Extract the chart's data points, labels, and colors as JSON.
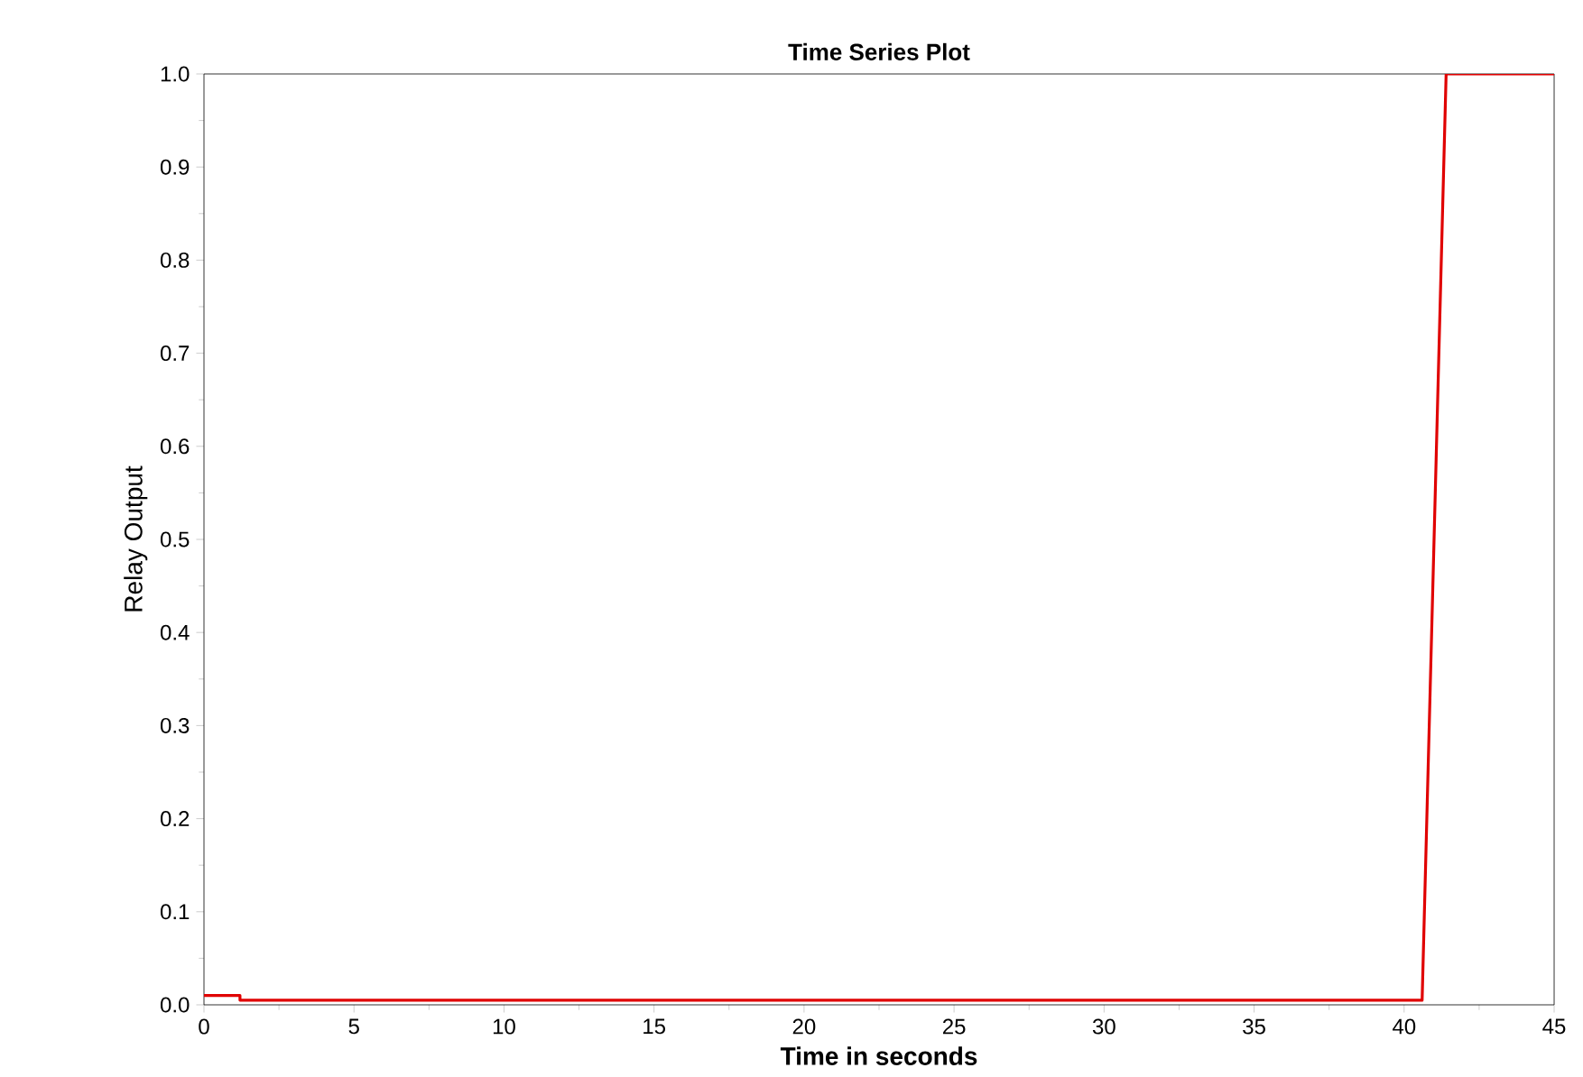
{
  "chart_data": {
    "type": "line",
    "title": "Time Series Plot",
    "xlabel": "Time in seconds",
    "ylabel": "Relay Output",
    "xlim": [
      0,
      45
    ],
    "ylim": [
      0,
      1
    ],
    "xticks": [
      0,
      5,
      10,
      15,
      20,
      25,
      30,
      35,
      40,
      45
    ],
    "yticks": [
      {
        "value": 0,
        "label": "0.0"
      },
      0.1,
      0.2,
      0.3,
      0.4,
      0.5,
      0.6,
      0.7,
      0.8,
      0.9,
      {
        "value": 1,
        "label": "1.0"
      }
    ],
    "grid": false,
    "series": [
      {
        "color": "#e00000",
        "x": [
          0,
          1.2,
          1.2,
          40.6,
          41.4,
          45
        ],
        "values": [
          0.01,
          0.01,
          0.005,
          0.005,
          1,
          1
        ]
      }
    ]
  }
}
